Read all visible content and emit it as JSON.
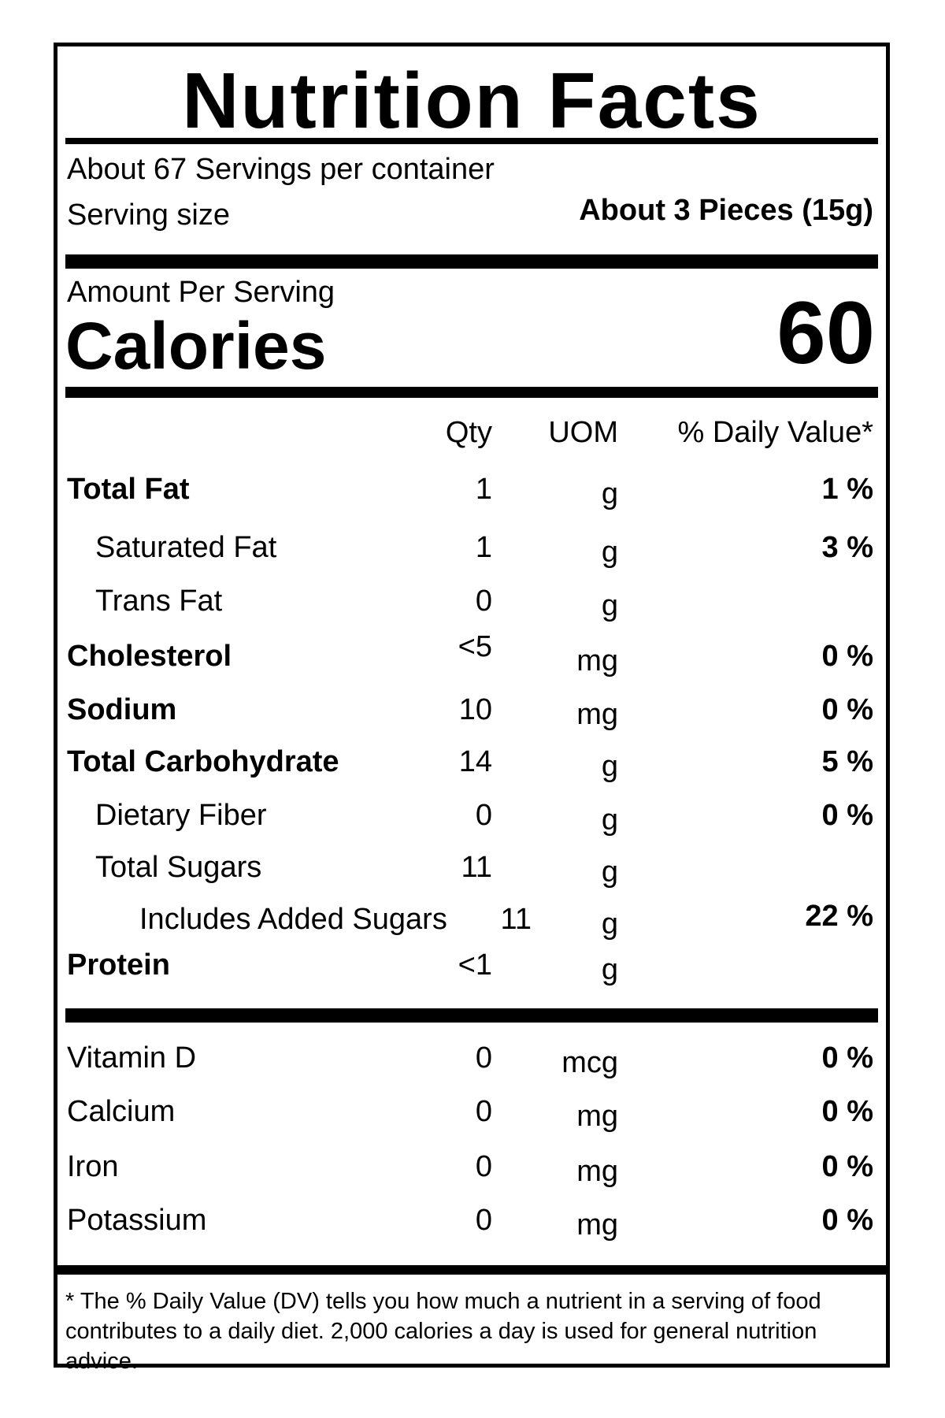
{
  "title": "Nutrition Facts",
  "servings_per_container": "About 67 Servings per container",
  "serving_size_label": "Serving size",
  "serving_size_value": "About 3 Pieces (15g)",
  "amount_per_serving": "Amount Per Serving",
  "calories_label": "Calories",
  "calories_value": "60",
  "columns": {
    "qty": "Qty",
    "uom": "UOM",
    "dv": "% Daily Value*"
  },
  "nutrients": [
    {
      "name": "Total Fat",
      "qty": "1",
      "uom": "g",
      "dv": "1 %"
    },
    {
      "name": "Saturated Fat",
      "qty": "1",
      "uom": "g",
      "dv": "3 %"
    },
    {
      "name": "Trans Fat",
      "qty": "0",
      "uom": "g",
      "dv": ""
    },
    {
      "name": "Cholesterol",
      "qty": "<5",
      "uom": "mg",
      "dv": "0 %"
    },
    {
      "name": "Sodium",
      "qty": "10",
      "uom": "mg",
      "dv": "0 %"
    },
    {
      "name": "Total Carbohydrate",
      "qty": "14",
      "uom": "g",
      "dv": "5 %"
    },
    {
      "name": "Dietary Fiber",
      "qty": "0",
      "uom": "g",
      "dv": "0 %"
    },
    {
      "name": "Total Sugars",
      "qty": "11",
      "uom": "g",
      "dv": ""
    },
    {
      "name": "Includes Added Sugars",
      "qty": "11",
      "uom": "g",
      "dv": "22 %"
    },
    {
      "name": "Protein",
      "qty": "<1",
      "uom": "g",
      "dv": ""
    }
  ],
  "vitamins": [
    {
      "name": "Vitamin D",
      "qty": "0",
      "uom": "mcg",
      "dv": "0 %"
    },
    {
      "name": "Calcium",
      "qty": "0",
      "uom": "mg",
      "dv": "0 %"
    },
    {
      "name": "Iron",
      "qty": "0",
      "uom": "mg",
      "dv": "0 %"
    },
    {
      "name": "Potassium",
      "qty": "0",
      "uom": "mg",
      "dv": "0 %"
    }
  ],
  "footnote": "* The % Daily Value (DV) tells you how much a nutrient in a serving of food contributes to a daily diet. 2,000 calories a day is used for general nutrition advice."
}
